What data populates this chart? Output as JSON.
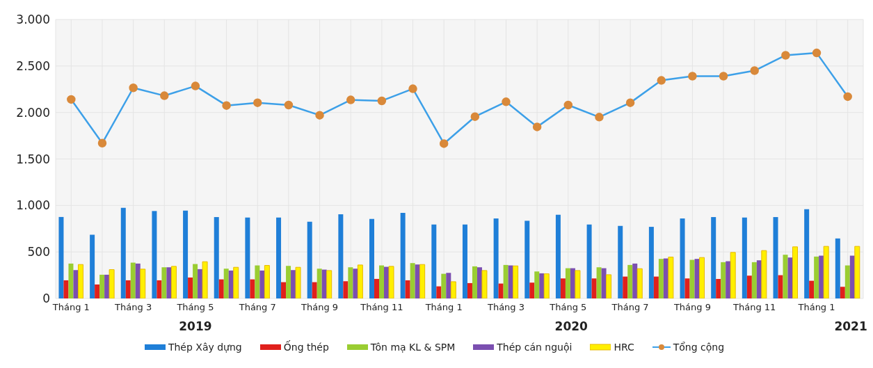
{
  "chart_data": {
    "type": "bar",
    "categories": [
      "Tháng 1",
      null,
      "Tháng 3",
      null,
      "Tháng 5",
      null,
      "Tháng 7",
      null,
      "Tháng 9",
      null,
      "Tháng 11",
      null,
      "Tháng 1",
      null,
      "Tháng 3",
      null,
      "Tháng 5",
      null,
      "Tháng 7",
      null,
      "Tháng 9",
      null,
      "Tháng 11",
      null,
      "Tháng 1",
      null
    ],
    "series": [
      {
        "name": "Thép Xây dựng",
        "color": "#1f7fd8",
        "values": [
          876,
          685,
          975,
          940,
          945,
          875,
          870,
          870,
          825,
          905,
          855,
          920,
          795,
          795,
          860,
          835,
          900,
          795,
          780,
          770,
          860,
          875,
          870,
          875,
          960,
          645
        ]
      },
      {
        "name": "Ống thép",
        "color": "#e0201c",
        "values": [
          195,
          150,
          195,
          195,
          225,
          205,
          205,
          175,
          175,
          185,
          210,
          195,
          130,
          165,
          160,
          170,
          215,
          215,
          235,
          235,
          215,
          210,
          245,
          250,
          190,
          125
        ]
      },
      {
        "name": "Tôn mạ KL & SPM",
        "color": "#9acd32",
        "values": [
          375,
          255,
          385,
          335,
          370,
          320,
          355,
          350,
          320,
          335,
          355,
          380,
          265,
          345,
          360,
          290,
          325,
          335,
          360,
          425,
          415,
          390,
          390,
          470,
          450,
          355
        ]
      },
      {
        "name": "Thép cán nguội",
        "color": "#7b4fb0",
        "values": [
          305,
          255,
          375,
          335,
          315,
          300,
          300,
          305,
          310,
          320,
          340,
          365,
          275,
          335,
          355,
          270,
          325,
          325,
          375,
          430,
          425,
          400,
          410,
          440,
          460,
          460
        ]
      },
      {
        "name": "HRC",
        "color": "#ffef00",
        "values": [
          365,
          310,
          315,
          345,
          395,
          335,
          355,
          335,
          300,
          360,
          345,
          365,
          180,
          300,
          350,
          265,
          300,
          255,
          320,
          445,
          440,
          495,
          515,
          555,
          560,
          560
        ]
      },
      {
        "name": "Tổng cộng",
        "type": "line",
        "color": "#3da0e8",
        "values": [
          2140,
          1670,
          2265,
          2180,
          2285,
          2075,
          2105,
          2080,
          1970,
          2135,
          2125,
          2255,
          1665,
          1955,
          2115,
          1845,
          2080,
          1950,
          2105,
          2345,
          2390,
          2390,
          2450,
          2615,
          2640,
          2170
        ]
      }
    ],
    "ylim": [
      0,
      3000
    ],
    "yticks": [
      {
        "value": 0,
        "label": "0"
      },
      {
        "value": 500,
        "label": "500"
      },
      {
        "value": 1000,
        "label": "1.000"
      },
      {
        "value": 1500,
        "label": "1.500"
      },
      {
        "value": 2000,
        "label": "2.000"
      },
      {
        "value": 2500,
        "label": "2.500"
      },
      {
        "value": 3000,
        "label": "3.000"
      }
    ],
    "annotations": [
      "2019",
      "2020",
      "2021"
    ],
    "grid": true,
    "legend": "bottom",
    "marker": "circle"
  }
}
